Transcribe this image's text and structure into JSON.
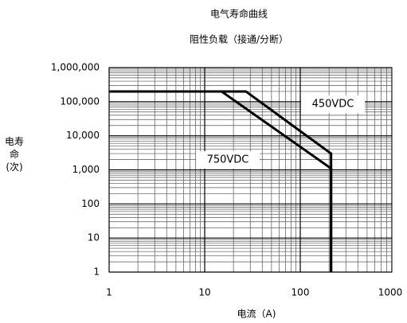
{
  "chart_data": {
    "type": "line",
    "title": "电气寿命曲线",
    "subtitle": "阻性负载（接通/分断）",
    "x_label": "电流（A)",
    "y_label": "电寿命(次)",
    "log_x": true,
    "log_y": true,
    "grid": true,
    "minor_grid": true,
    "xlim": [
      1,
      1000
    ],
    "xticks": [
      1,
      10,
      100,
      1000
    ],
    "ylim": [
      1,
      1000000
    ],
    "yticks": [
      1,
      10,
      100,
      {
        "value": 1000,
        "label": "1,000"
      },
      {
        "value": 10000,
        "label": "10,000"
      },
      {
        "value": 100000,
        "label": "100,000"
      },
      {
        "value": 1000000,
        "label": "1,000,000"
      }
    ],
    "series": [
      {
        "name": "450VDC",
        "color": "#000000",
        "x": [
          1,
          27,
          210,
          210
        ],
        "values": [
          200000,
          200000,
          3000,
          1
        ]
      },
      {
        "name": "750VDC",
        "color": "#000000",
        "x": [
          1,
          15,
          210,
          210
        ],
        "values": [
          200000,
          200000,
          1100,
          1
        ]
      }
    ]
  }
}
